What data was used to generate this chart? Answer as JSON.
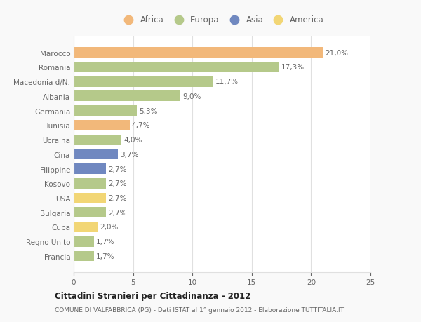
{
  "countries": [
    "Francia",
    "Regno Unito",
    "Cuba",
    "Bulgaria",
    "USA",
    "Kosovo",
    "Filippine",
    "Cina",
    "Ucraina",
    "Tunisia",
    "Germania",
    "Albania",
    "Macedonia d/N.",
    "Romania",
    "Marocco"
  ],
  "values": [
    1.7,
    1.7,
    2.0,
    2.7,
    2.7,
    2.7,
    2.7,
    3.7,
    4.0,
    4.7,
    5.3,
    9.0,
    11.7,
    17.3,
    21.0
  ],
  "labels": [
    "1,7%",
    "1,7%",
    "2,0%",
    "2,7%",
    "2,7%",
    "2,7%",
    "2,7%",
    "3,7%",
    "4,0%",
    "4,7%",
    "5,3%",
    "9,0%",
    "11,7%",
    "17,3%",
    "21,0%"
  ],
  "colors": [
    "#b5c98a",
    "#b5c98a",
    "#f2d675",
    "#b5c98a",
    "#f2d675",
    "#b5c98a",
    "#7088c0",
    "#7088c0",
    "#b5c98a",
    "#f2b87a",
    "#b5c98a",
    "#b5c98a",
    "#b5c98a",
    "#b5c98a",
    "#f2b87a"
  ],
  "continent_colors": {
    "Africa": "#f2b87a",
    "Europa": "#b5c98a",
    "Asia": "#7088c0",
    "America": "#f2d675"
  },
  "xlim": [
    0,
    25
  ],
  "xticks": [
    0,
    5,
    10,
    15,
    20,
    25
  ],
  "title": "Cittadini Stranieri per Cittadinanza - 2012",
  "subtitle": "COMUNE DI VALFABBRICA (PG) - Dati ISTAT al 1° gennaio 2012 - Elaborazione TUTTITALIA.IT",
  "background_color": "#f9f9f9",
  "bar_background": "#ffffff",
  "grid_color": "#e0e0e0",
  "text_color": "#666666",
  "title_color": "#222222"
}
